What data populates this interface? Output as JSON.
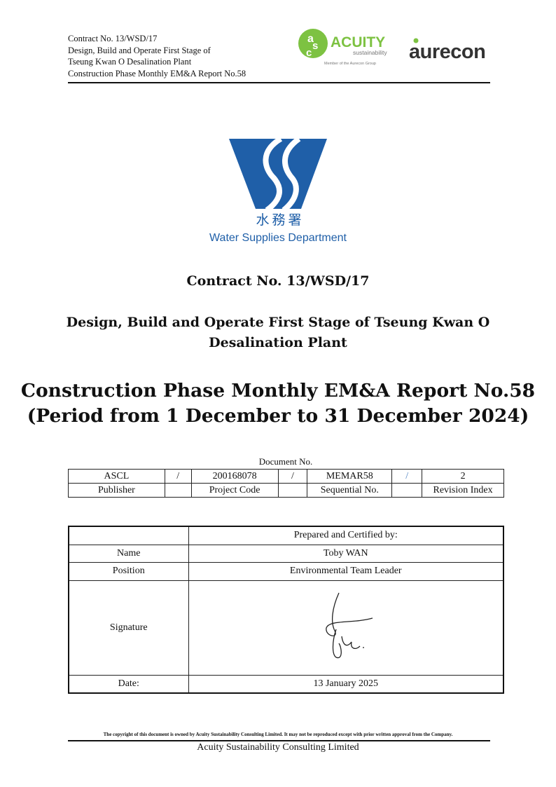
{
  "header": {
    "lines": [
      "Contract No. 13/WSD/17",
      "Design, Build and Operate First Stage of",
      "Tseung Kwan O Desalination Plant",
      "Construction Phase Monthly EM&A Report No.58"
    ],
    "acuity_logo": {
      "mark": "asc",
      "name": "ACUITY",
      "sub": "sustainability",
      "tagline": "Member of the Aurecon Group",
      "color": "#7dc242"
    },
    "aurecon_logo": {
      "name": "aurecon",
      "color": "#333333",
      "accent": "#7dc242"
    }
  },
  "wsd_logo": {
    "chinese": "水務署",
    "english": "Water Supplies Department",
    "color": "#1f5fa8"
  },
  "title": {
    "contract": "Contract No. 13/WSD/17",
    "project_line1": "Design, Build and Operate First Stage of Tseung Kwan O",
    "project_line2": "Desalination Plant",
    "report_line1": "Construction Phase Monthly EM&A Report No.58",
    "report_line2": "(Period from 1 December to 31 December 2024)"
  },
  "document_no": {
    "label": "Document No.",
    "values": [
      "ASCL",
      "/",
      "200168078",
      "/",
      "MEMAR58",
      "/",
      "2"
    ],
    "labels": [
      "Publisher",
      "",
      "Project Code",
      "",
      "Sequential No.",
      "",
      "Revision Index"
    ]
  },
  "certification": {
    "heading": "Prepared and Certified by:",
    "rows": [
      {
        "label": "Name",
        "value": "Toby WAN"
      },
      {
        "label": "Position",
        "value": "Environmental Team Leader"
      },
      {
        "label": "Signature",
        "value": ""
      },
      {
        "label": "Date:",
        "value": "13 January 2025"
      }
    ]
  },
  "footer": {
    "copyright": "The copyright of this document is owned by Acuity Sustainability Consulting Limited. It may not be reproduced except with prior written approval from the Company.",
    "company": "Acuity Sustainability Consulting Limited"
  }
}
